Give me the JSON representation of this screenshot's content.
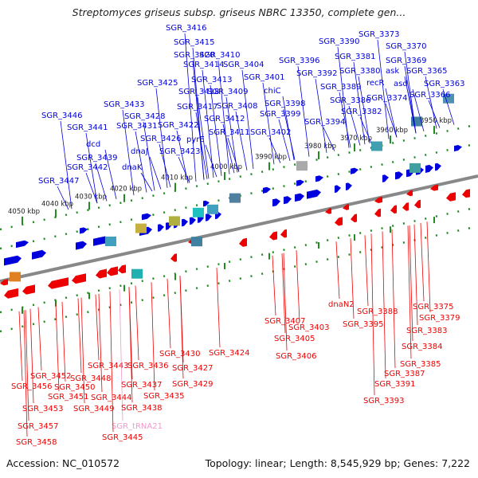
{
  "title": "Streptomyces griseus subsp. griseus NBRC 13350, complete gen...",
  "footer": {
    "accession": "Accession: NC_010572",
    "summary": "Topology: linear; Length: 8,545,929 bp; Genes: 7,222"
  },
  "colors": {
    "forward_gene": "#0000dd",
    "reverse_gene": "#ee0000",
    "trna_label": "#ee99cc",
    "backbone": "#888888",
    "tick": "#228b22"
  },
  "scale": {
    "unit": "kbp",
    "ticks": [
      {
        "label": "4050 kbp"
      },
      {
        "label": "4040 kbp"
      },
      {
        "label": "4030 kbp"
      },
      {
        "label": "4020 kbp"
      },
      {
        "label": "4010 kbp"
      },
      {
        "label": "4000 kbp"
      },
      {
        "label": "3990 kbp"
      },
      {
        "label": "3980 kbp"
      },
      {
        "label": "3970 kbp"
      },
      {
        "label": "3960 kbp"
      },
      {
        "label": "3950 kbp"
      }
    ]
  },
  "top_labels": [
    "SGR_3446",
    "SGR_3441",
    "dcd",
    "SGR_3439",
    "SGR_3442",
    "SGR_3447",
    "SGR_3433",
    "SGR_3428",
    "SGR_3431",
    "SGR_3426",
    "dnaJ",
    "dnaK",
    "SGR_3425",
    "SGR_3420",
    "SGR_3416",
    "SGR_3415",
    "SGR_3414",
    "SGR_3418",
    "SGR_3417",
    "SGR_3422",
    "pyrE",
    "SGR_3423",
    "SGR_3410",
    "SGR_3413",
    "SGR_3409",
    "SGR_3412",
    "SGR_3411",
    "SGR_3404",
    "SGR_3401",
    "SGR_3408",
    "chiC",
    "SGR_3398",
    "SGR_3399",
    "SGR_3402",
    "SGR_3396",
    "SGR_3390",
    "SGR_3392",
    "SGR_3389",
    "SGR_3386",
    "SGR_3394",
    "SGR_3381",
    "SGR_3380",
    "SGR_3382",
    "recR",
    "SGR_3373",
    "SGR_3370",
    "SGR_3369",
    "ask",
    "asd",
    "SGR_3374",
    "SGR_3365",
    "SGR_3363",
    "SGR_3366"
  ],
  "bottom_labels": [
    "SGR_3452",
    "SGR_3456",
    "SGR_3453",
    "SGR_3457",
    "SGR_3458",
    "SGR_3450",
    "SGR_3451",
    "SGR_3448",
    "SGR_3449",
    "SGR_3443",
    "SGR_3444",
    "SGR_tRNA21",
    "SGR_3445",
    "SGR_3436",
    "SGR_3437",
    "SGR_3438",
    "SGR_3435",
    "SGR_3430",
    "SGR_3427",
    "SGR_3429",
    "SGR_3424",
    "SGR_3407",
    "SGR_3403",
    "SGR_3405",
    "SGR_3406",
    "dnaN2",
    "SGR_3395",
    "SGR_3388",
    "SGR_3375",
    "SGR_3379",
    "SGR_3383",
    "SGR_3384",
    "SGR_3385",
    "SGR_3387",
    "SGR_3391",
    "SGR_3393"
  ]
}
